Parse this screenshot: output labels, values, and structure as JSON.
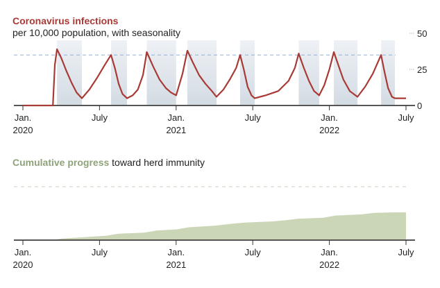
{
  "charts_text": {
    "chart1_title_highlight": "Coronavirus infections",
    "chart1_subtitle": "per 10,000 population, with seasonality",
    "chart2_title_highlight": "Cumulative progress",
    "chart2_title_rest": " toward herd immunity"
  },
  "colors": {
    "infections_line": "#a83a36",
    "threshold_dash": "#8fb0d8",
    "season_band": "#d6dde5",
    "immunity_fill": "#cbd6b7",
    "immunity_dash": "#d5d9cc",
    "axis": "#555555"
  },
  "chart_data": [
    {
      "type": "line",
      "title": "Coronavirus infections",
      "subtitle": "per 10,000 population, with seasonality",
      "xlabel": "",
      "ylabel": "",
      "x_unit": "months since Jan. 2020",
      "xlim": [
        0,
        30
      ],
      "ylim": [
        0,
        50
      ],
      "yticks": [
        0,
        25,
        50
      ],
      "ytick_labels": [
        "0",
        "25",
        "50"
      ],
      "xticks": [
        0,
        6,
        12,
        18,
        24,
        30
      ],
      "xtick_labels": [
        [
          "Jan.",
          "2020"
        ],
        [
          "July",
          ""
        ],
        [
          "Jan.",
          "2021"
        ],
        [
          "July",
          ""
        ],
        [
          "Jan.",
          "2022"
        ],
        [
          "July",
          ""
        ]
      ],
      "threshold": 35,
      "season_bands": [
        [
          2.67,
          4.62
        ],
        [
          6.9,
          8.15
        ],
        [
          9.7,
          12.0
        ],
        [
          12.88,
          15.16
        ],
        [
          17.01,
          18.15
        ],
        [
          21.6,
          23.2
        ],
        [
          24.35,
          26.2
        ],
        [
          28.05,
          29.13
        ]
      ],
      "series": [
        {
          "name": "Infections",
          "x": [
            0,
            2.35,
            2.5,
            2.67,
            3.0,
            3.4,
            3.8,
            4.2,
            4.62,
            5.2,
            5.8,
            6.4,
            6.9,
            7.2,
            7.5,
            7.8,
            8.15,
            8.6,
            9.0,
            9.4,
            9.7,
            10.2,
            10.7,
            11.2,
            11.6,
            12.0,
            12.5,
            12.88,
            13.3,
            13.8,
            14.3,
            14.8,
            15.16,
            15.7,
            16.2,
            16.7,
            17.01,
            17.3,
            17.6,
            17.9,
            18.15,
            19.0,
            20.0,
            20.8,
            21.3,
            21.6,
            22.0,
            22.4,
            22.8,
            23.2,
            23.6,
            24.0,
            24.35,
            24.7,
            25.1,
            25.6,
            26.2,
            26.8,
            27.4,
            28.05,
            28.3,
            28.6,
            28.9,
            29.13,
            29.5,
            30.0
          ],
          "y": [
            0,
            0,
            28,
            39,
            33,
            24,
            16,
            9,
            5,
            11,
            19,
            28,
            35,
            26,
            15,
            8,
            5,
            7,
            11,
            21,
            37,
            27,
            18,
            12,
            9,
            7,
            22,
            38,
            30,
            21,
            15,
            10,
            6,
            11,
            18,
            26,
            35,
            25,
            13,
            7,
            5,
            7,
            10,
            17,
            26,
            36,
            26,
            17,
            10,
            7,
            14,
            25,
            37,
            28,
            18,
            10,
            6,
            13,
            22,
            35,
            24,
            12,
            6,
            5,
            5,
            5
          ]
        }
      ]
    },
    {
      "type": "area",
      "title": "Cumulative progress toward herd immunity",
      "xlabel": "",
      "ylabel": "",
      "x_unit": "months since Jan. 2020",
      "xlim": [
        0,
        30
      ],
      "ylim": [
        0,
        100
      ],
      "threshold": 100,
      "xticks": [
        0,
        6,
        12,
        18,
        24,
        30
      ],
      "xtick_labels": [
        [
          "Jan.",
          "2020"
        ],
        [
          "July",
          ""
        ],
        [
          "Jan.",
          "2021"
        ],
        [
          "July",
          ""
        ],
        [
          "Jan.",
          "2022"
        ],
        [
          "July",
          ""
        ]
      ],
      "series": [
        {
          "name": "Cumulative progress",
          "x": [
            0,
            2.35,
            3.0,
            4.5,
            6.5,
            7.5,
            9.5,
            10.5,
            12.0,
            13.0,
            15.0,
            16.5,
            17.5,
            19.5,
            20.5,
            21.5,
            23.5,
            24.5,
            26.5,
            27.5,
            29.0,
            30.0
          ],
          "y": [
            0,
            0,
            3,
            5,
            8,
            12,
            14,
            18,
            20,
            24,
            27,
            31,
            33,
            35,
            37,
            40,
            42,
            46,
            48,
            51,
            52,
            52
          ]
        }
      ]
    }
  ]
}
